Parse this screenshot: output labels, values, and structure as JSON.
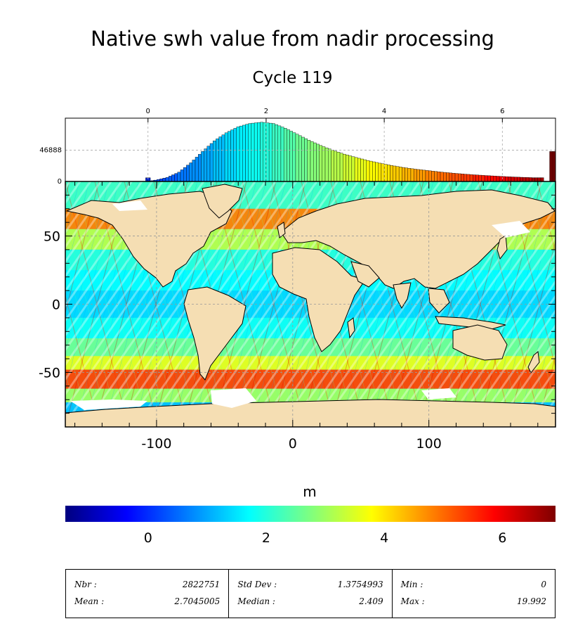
{
  "title": "Native swh value from nadir processing",
  "subtitle": "Cycle 119",
  "colorbar": {
    "label": "m",
    "ticks": [
      "0",
      "2",
      "4",
      "6"
    ],
    "range": [
      -1.4,
      6.9
    ],
    "colors": [
      "#00007f",
      "#0000ff",
      "#007fff",
      "#00ffff",
      "#7fff7f",
      "#ffff00",
      "#ff7f00",
      "#ff0000",
      "#7f0000"
    ]
  },
  "chart_data": [
    {
      "type": "histogram",
      "x_ticks": [
        "0",
        "2",
        "4",
        "6"
      ],
      "xlim": [
        -1.4,
        6.9
      ],
      "y_ticks": [
        "0",
        "46888"
      ],
      "ylim": [
        0,
        95000
      ],
      "grid": true,
      "bins": [
        {
          "x": 0.0,
          "y": 5500
        },
        {
          "x": 0.05,
          "y": 400
        },
        {
          "x": 0.2,
          "y": 2000
        },
        {
          "x": 0.4,
          "y": 6000
        },
        {
          "x": 0.6,
          "y": 14000
        },
        {
          "x": 0.8,
          "y": 28000
        },
        {
          "x": 1.0,
          "y": 45000
        },
        {
          "x": 1.2,
          "y": 61000
        },
        {
          "x": 1.4,
          "y": 73000
        },
        {
          "x": 1.6,
          "y": 82000
        },
        {
          "x": 1.8,
          "y": 87000
        },
        {
          "x": 2.0,
          "y": 89000
        },
        {
          "x": 2.2,
          "y": 87000
        },
        {
          "x": 2.4,
          "y": 80000
        },
        {
          "x": 2.6,
          "y": 71000
        },
        {
          "x": 2.8,
          "y": 62000
        },
        {
          "x": 3.0,
          "y": 54000
        },
        {
          "x": 3.2,
          "y": 47000
        },
        {
          "x": 3.4,
          "y": 41000
        },
        {
          "x": 3.6,
          "y": 36000
        },
        {
          "x": 3.8,
          "y": 31500
        },
        {
          "x": 4.0,
          "y": 27500
        },
        {
          "x": 4.2,
          "y": 24000
        },
        {
          "x": 4.4,
          "y": 21000
        },
        {
          "x": 4.6,
          "y": 18500
        },
        {
          "x": 4.8,
          "y": 16500
        },
        {
          "x": 5.0,
          "y": 14500
        },
        {
          "x": 5.2,
          "y": 12800
        },
        {
          "x": 5.4,
          "y": 11300
        },
        {
          "x": 5.6,
          "y": 10000
        },
        {
          "x": 5.8,
          "y": 8900
        },
        {
          "x": 6.0,
          "y": 7900
        },
        {
          "x": 6.2,
          "y": 7000
        },
        {
          "x": 6.4,
          "y": 6300
        },
        {
          "x": 6.6,
          "y": 5700
        },
        {
          "x": 6.85,
          "y": 45000
        }
      ]
    },
    {
      "type": "heatmap",
      "x_ticks": [
        "-100",
        "0",
        "100"
      ],
      "y_ticks": [
        "50",
        "0",
        "-50"
      ],
      "xlim": [
        -167,
        193
      ],
      "ylim": [
        -90,
        90
      ],
      "grid": true,
      "land_color": "#f5deb3",
      "ice_color": "#ffffff"
    }
  ],
  "stats": {
    "nbr_label": "Nbr :",
    "nbr_value": "2822751",
    "mean_label": "Mean :",
    "mean_value": "2.7045005",
    "std_label": "Std Dev :",
    "std_value": "1.3754993",
    "median_label": "Median :",
    "median_value": "2.409",
    "min_label": "Min :",
    "min_value": "0",
    "max_label": "Max :",
    "max_value": "19.992"
  }
}
